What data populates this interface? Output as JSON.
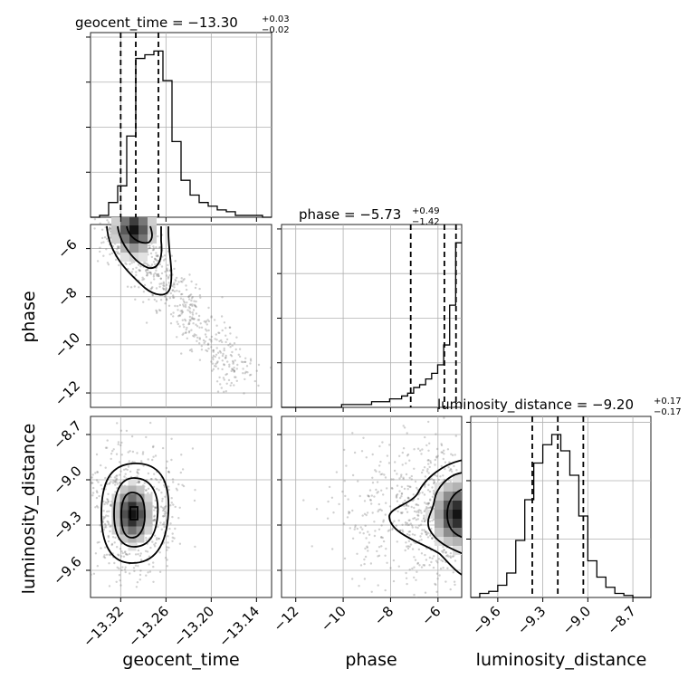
{
  "chart_data": {
    "type": "corner",
    "parameters": [
      {
        "name": "geocent_time",
        "range": [
          -13.36,
          -13.12
        ],
        "ticks": [
          -13.32,
          -13.26,
          -13.2,
          -13.14
        ],
        "tick_labels": [
          "−13.32",
          "−13.26",
          "−13.20",
          "−13.14"
        ]
      },
      {
        "name": "phase",
        "range": [
          -12.6,
          -5.0
        ],
        "ticks": [
          -12,
          -10,
          -8,
          -6
        ],
        "tick_labels": [
          "−12",
          "−10",
          "−8",
          "−6"
        ]
      },
      {
        "name": "luminosity_distance",
        "range": [
          -9.78,
          -8.58
        ],
        "ticks": [
          -9.6,
          -9.3,
          -9.0,
          -8.7
        ],
        "tick_labels": [
          "−9.6",
          "−9.3",
          "−9.0",
          "−8.7"
        ]
      }
    ],
    "titles": [
      {
        "param": "geocent_time",
        "label": "geocent_time = −13.30",
        "median": -13.3,
        "plus": "+0.03",
        "minus": "−0.02"
      },
      {
        "param": "phase",
        "label": "phase = −5.73",
        "median": -5.73,
        "plus": "+0.49",
        "minus": "−1.42"
      },
      {
        "param": "luminosity_distance",
        "label": "luminosity_distance = −9.20",
        "median": -9.2,
        "plus": "+0.17",
        "minus": "−0.17"
      }
    ],
    "quantiles": {
      "geocent_time": [
        -13.32,
        -13.3,
        -13.27
      ],
      "phase": [
        -7.15,
        -5.73,
        -5.24
      ],
      "luminosity_distance": [
        -9.37,
        -9.2,
        -9.03
      ]
    },
    "histograms": {
      "geocent_time": {
        "edges": [
          -13.36,
          -13.12
        ],
        "counts": [
          0,
          1,
          8,
          17,
          44,
          86,
          88,
          90,
          74,
          41,
          20,
          12,
          8,
          6,
          4,
          3,
          1,
          1,
          1,
          0
        ]
      },
      "phase": {
        "edges": [
          -12.6,
          -5.0
        ],
        "counts": [
          0,
          0,
          0,
          0,
          0,
          0,
          0,
          0,
          0,
          0,
          1,
          1,
          1,
          1,
          1,
          2,
          2,
          2,
          3,
          3,
          4,
          5,
          7,
          8,
          10,
          12,
          15,
          22,
          36,
          58
        ]
      },
      "luminosity_distance": {
        "edges": [
          -9.78,
          -8.58
        ],
        "counts": [
          0,
          2,
          3,
          6,
          12,
          28,
          48,
          66,
          75,
          80,
          72,
          60,
          40,
          18,
          10,
          5,
          2,
          1,
          0,
          0
        ]
      }
    },
    "pairs": [
      {
        "x": "geocent_time",
        "y": "phase",
        "center": [
          -13.315,
          -5.3
        ],
        "x_tail_to": [
          -13.15,
          -11.8
        ]
      },
      {
        "x": "geocent_time",
        "y": "luminosity_distance",
        "center": [
          -13.315,
          -9.22
        ]
      },
      {
        "x": "phase",
        "y": "luminosity_distance",
        "center": [
          -5.1,
          -9.22
        ]
      }
    ]
  }
}
